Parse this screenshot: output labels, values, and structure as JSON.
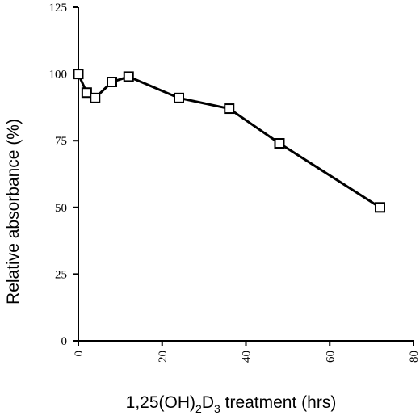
{
  "chart_data": {
    "type": "line",
    "xlabel": {
      "pre": "1,25(OH)",
      "sub1": "2",
      "mid": "D",
      "sub2": "3",
      "post": " treatment (hrs)"
    },
    "ylabel": "Relative absorbance (%)",
    "xlim": [
      0,
      80
    ],
    "ylim": [
      0,
      125
    ],
    "xticks": [
      0,
      20,
      40,
      60,
      80
    ],
    "yticks": [
      0,
      25,
      50,
      75,
      100,
      125
    ],
    "grid": false,
    "marker": "open-square",
    "line_color": "#000000",
    "series": [
      {
        "x": [
          0,
          2,
          4,
          8,
          12,
          24,
          36,
          48,
          72
        ],
        "y": [
          100,
          93,
          91,
          97,
          99,
          91,
          87,
          74,
          50
        ]
      }
    ]
  }
}
